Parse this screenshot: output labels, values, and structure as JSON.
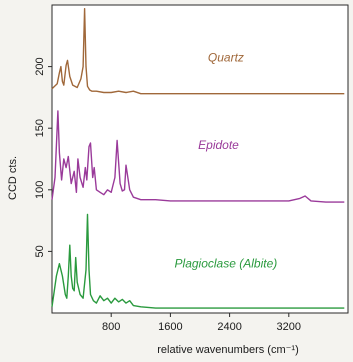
{
  "chart_data": {
    "type": "line",
    "xlabel": "relative wavenumbers (cm⁻¹)",
    "ylabel": "CCD cts.",
    "xlim": [
      0,
      4000
    ],
    "ylim": [
      0,
      250
    ],
    "xticks": [
      800,
      1600,
      2400,
      3200
    ],
    "yticks": [
      50,
      100,
      150,
      200
    ],
    "grid": false,
    "series": [
      {
        "name": "Quartz",
        "color": "#a0683a",
        "x": [
          0,
          70,
          100,
          120,
          140,
          160,
          190,
          210,
          240,
          280,
          340,
          390,
          420,
          440,
          460,
          480,
          510,
          540,
          600,
          700,
          800,
          900,
          1000,
          1100,
          1200,
          1600,
          2000,
          2400,
          2800,
          3200,
          3600,
          3950
        ],
        "y": [
          182,
          186,
          195,
          200,
          188,
          185,
          201,
          205,
          192,
          185,
          183,
          190,
          200,
          247,
          200,
          184,
          181,
          180,
          180,
          179,
          179,
          180,
          179,
          180,
          178,
          178,
          178,
          178,
          178,
          178,
          178,
          178
        ]
      },
      {
        "name": "Epidote",
        "color": "#9a3a9a",
        "x": [
          0,
          40,
          80,
          100,
          130,
          160,
          190,
          220,
          260,
          300,
          330,
          350,
          380,
          420,
          450,
          470,
          500,
          520,
          550,
          570,
          600,
          650,
          700,
          750,
          800,
          850,
          880,
          920,
          950,
          980,
          1000,
          1050,
          1100,
          1200,
          1400,
          1600,
          2000,
          2400,
          2800,
          3200,
          3350,
          3420,
          3500,
          3700,
          3950
        ],
        "y": [
          92,
          110,
          164,
          130,
          108,
          125,
          118,
          127,
          105,
          115,
          98,
          125,
          110,
          102,
          118,
          108,
          135,
          138,
          110,
          118,
          100,
          98,
          96,
          100,
          98,
          110,
          140,
          105,
          99,
          100,
          120,
          100,
          94,
          92,
          92,
          91,
          91,
          91,
          91,
          91,
          93,
          95,
          91,
          90,
          90
        ]
      },
      {
        "name": "Plagioclase (Albite)",
        "color": "#2a9a3e",
        "x": [
          0,
          60,
          100,
          140,
          180,
          200,
          220,
          240,
          260,
          280,
          300,
          320,
          340,
          380,
          420,
          460,
          480,
          500,
          520,
          560,
          600,
          650,
          700,
          750,
          800,
          850,
          900,
          950,
          1000,
          1050,
          1100,
          1200,
          1400,
          1600,
          2000,
          2400,
          2800,
          3200,
          3600,
          3950
        ],
        "y": [
          5,
          30,
          40,
          30,
          15,
          12,
          30,
          55,
          30,
          20,
          18,
          45,
          25,
          15,
          12,
          35,
          80,
          35,
          15,
          10,
          8,
          14,
          10,
          12,
          8,
          12,
          9,
          11,
          8,
          10,
          6,
          5,
          4,
          4,
          4,
          4,
          4,
          4,
          4,
          4
        ]
      }
    ],
    "annotations": [
      "Quartz",
      "Epidote",
      "Plagioclase (Albite)"
    ]
  }
}
